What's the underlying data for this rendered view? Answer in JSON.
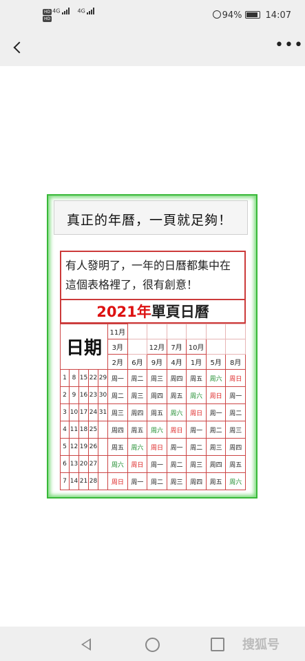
{
  "status_bar": {
    "hd1": "HD",
    "hd2": "HD",
    "net1": "4G",
    "net2": "4G",
    "battery": "94%",
    "time": "14:07"
  },
  "nav": {
    "more": "•••"
  },
  "image": {
    "title": "真正的年曆，一頁就足夠！",
    "desc_line1": "有人發明了，一年的日曆都集中在",
    "desc_line2": "這個表格裡了，很有創意！",
    "cal_year": "2021年",
    "cal_title": "單頁日曆",
    "date_label": "日期",
    "month_rows": [
      [
        "11月",
        "",
        "",
        "",
        "",
        ""
      ],
      [
        "3月",
        "12月",
        "7月",
        "10月",
        "",
        ""
      ],
      [
        "2月",
        "6月",
        "9月",
        "4月",
        "1月",
        "5月",
        "8月"
      ]
    ],
    "rows": [
      {
        "d": [
          "1",
          "8",
          "15",
          "22",
          "29"
        ],
        "w": [
          "周一",
          "周二",
          "周三",
          "周四",
          "周五",
          "周六",
          "周日"
        ]
      },
      {
        "d": [
          "2",
          "9",
          "16",
          "23",
          "30"
        ],
        "w": [
          "周二",
          "周三",
          "周四",
          "周五",
          "周六",
          "周日",
          "周一"
        ]
      },
      {
        "d": [
          "3",
          "10",
          "17",
          "24",
          "31"
        ],
        "w": [
          "周三",
          "周四",
          "周五",
          "周六",
          "周日",
          "周一",
          "周二"
        ]
      },
      {
        "d": [
          "4",
          "11",
          "18",
          "25",
          ""
        ],
        "w": [
          "周四",
          "周五",
          "周六",
          "周日",
          "周一",
          "周二",
          "周三"
        ]
      },
      {
        "d": [
          "5",
          "12",
          "19",
          "26",
          ""
        ],
        "w": [
          "周五",
          "周六",
          "周日",
          "周一",
          "周二",
          "周三",
          "周四"
        ]
      },
      {
        "d": [
          "6",
          "13",
          "20",
          "27",
          ""
        ],
        "w": [
          "周六",
          "周日",
          "周一",
          "周二",
          "周三",
          "周四",
          "周五"
        ]
      },
      {
        "d": [
          "7",
          "14",
          "21",
          "28",
          ""
        ],
        "w": [
          "周日",
          "周一",
          "周二",
          "周三",
          "周四",
          "周五",
          "周六"
        ]
      }
    ],
    "colors": {
      "saturday": "#1a8a2a",
      "sunday": "#dd2222",
      "border": "#cc4444",
      "frame": "#38b838"
    }
  },
  "watermark": "搜狐号"
}
